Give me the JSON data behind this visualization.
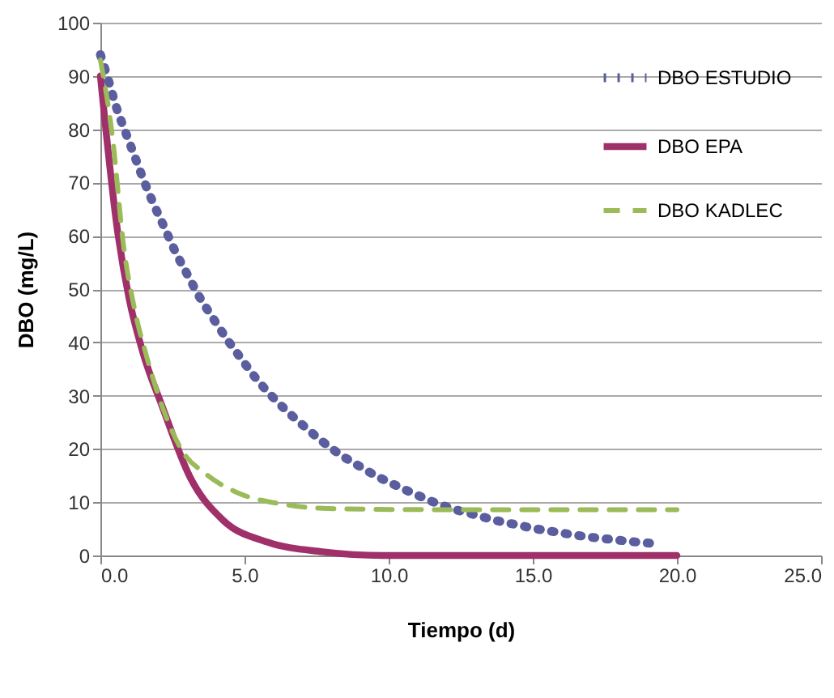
{
  "chart_data": {
    "type": "line",
    "xlabel": "Tiempo (d)",
    "ylabel": "DBO (mg/L)",
    "xlim": [
      0,
      25
    ],
    "xticks": [
      {
        "value": 0,
        "label": "0.0"
      },
      {
        "value": 5,
        "label": "5.0"
      },
      {
        "value": 10,
        "label": "10.0"
      },
      {
        "value": 15,
        "label": "15.0"
      },
      {
        "value": 20,
        "label": "20.0"
      },
      {
        "value": 25,
        "label": "25.0"
      }
    ],
    "ylim": [
      0,
      100
    ],
    "yticks": [
      0,
      10,
      20,
      30,
      40,
      50,
      60,
      70,
      80,
      90,
      100
    ],
    "grid": "y",
    "legend": "top right",
    "marker": "none",
    "series": [
      {
        "name": "DBO ESTUDIO",
        "color": "#5b5e9e",
        "line_style": "dotted",
        "x": [
          0,
          0.29,
          0.56,
          0.86,
          1.19,
          1.51,
          1.86,
          2.25,
          2.61,
          3.03,
          3.45,
          3.91,
          4.39,
          4.89,
          5.39,
          5.93,
          6.49,
          7.1,
          7.7,
          8.33,
          8.97,
          9.62,
          10.27,
          10.96,
          11.62,
          12.32,
          13.02,
          13.7,
          14.41,
          15.12,
          15.81,
          16.5,
          17.22,
          17.92,
          18.63,
          19.32
        ],
        "values": [
          94,
          89,
          84,
          79.6,
          74.9,
          70.3,
          65.8,
          61.2,
          56.9,
          52.6,
          48.4,
          44.5,
          40.6,
          36.9,
          33.3,
          30,
          27,
          24.1,
          21.4,
          18.9,
          16.8,
          14.8,
          13.1,
          11.4,
          9.9,
          8.6,
          7.6,
          6.6,
          5.8,
          5,
          4.4,
          3.8,
          3.3,
          2.9,
          2.5,
          2.2
        ]
      },
      {
        "name": "DBO EPA",
        "color": "#a0306a",
        "line_style": "solid",
        "x": [
          0,
          0.61,
          1,
          1.48,
          2.15,
          3.11,
          4.26,
          5.8,
          7.7,
          9.8,
          15,
          20
        ],
        "values": [
          90,
          60.3,
          48.1,
          38,
          27.9,
          14.7,
          6.6,
          2.5,
          0.7,
          0,
          0,
          0
        ]
      },
      {
        "name": "DBO KADLEC",
        "color": "#9bbb59",
        "line_style": "dashed",
        "x": [
          0,
          0.42,
          0.8,
          1.19,
          1.57,
          2.15,
          2.82,
          3.68,
          4.84,
          6.37,
          7.9,
          12,
          16,
          20
        ],
        "values": [
          93,
          78.5,
          58.3,
          46.1,
          38,
          27.9,
          19.8,
          15.2,
          11.6,
          9.6,
          8.8,
          8.6,
          8.6,
          8.6
        ]
      }
    ]
  }
}
